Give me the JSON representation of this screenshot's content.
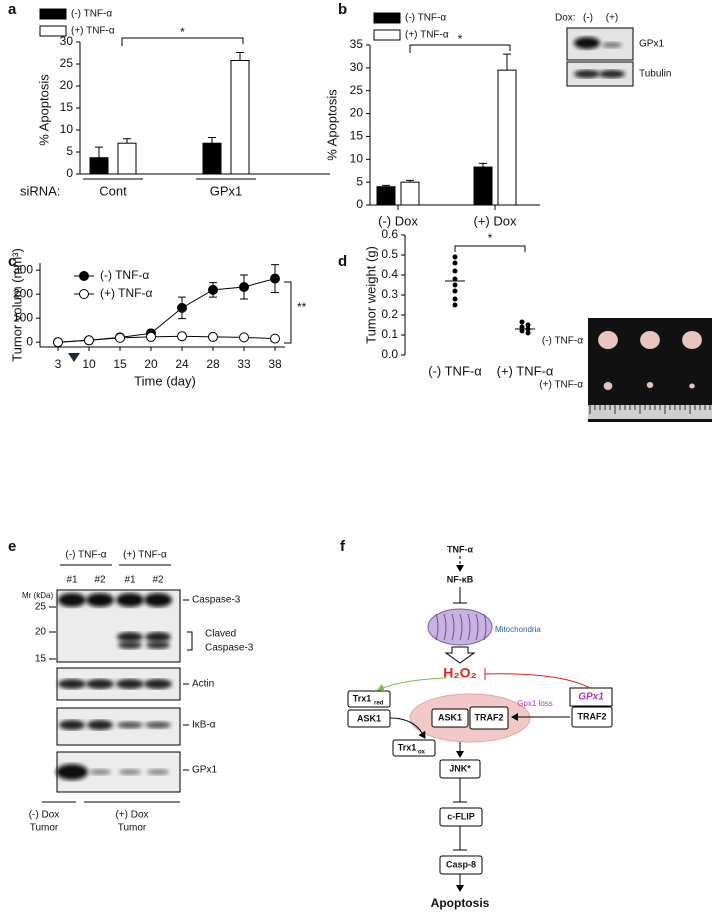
{
  "chart_data": [
    {
      "label": "a",
      "type": "bar",
      "y_label": "% Apoptosis",
      "x_label": "siRNA:",
      "categories": [
        "Cont",
        "GPx1"
      ],
      "series": [
        {
          "name": "(-) TNF-α",
          "color": "#000000",
          "values": [
            3.7,
            7
          ],
          "errors": [
            2.4,
            1.3
          ]
        },
        {
          "name": "(+) TNF-α",
          "color": "#ffffff",
          "values": [
            7,
            25.8
          ],
          "errors": [
            1,
            1.8
          ]
        }
      ],
      "ylim": [
        0,
        30
      ],
      "yticks": [
        0,
        5,
        10,
        15,
        20,
        25,
        30
      ],
      "annotations": [
        "*"
      ]
    },
    {
      "label": "b",
      "type": "bar",
      "y_label": "% Apoptosis",
      "categories": [
        "(-) Dox",
        "(+) Dox"
      ],
      "series": [
        {
          "name": "(-) TNF-α",
          "color": "#000000",
          "values": [
            4,
            8.3
          ],
          "errors": [
            0.3,
            0.8
          ]
        },
        {
          "name": "(+) TNF-α",
          "color": "#ffffff",
          "values": [
            5,
            29.5
          ],
          "errors": [
            0.4,
            3.5
          ]
        }
      ],
      "ylim": [
        0,
        35
      ],
      "yticks": [
        0,
        5,
        10,
        15,
        20,
        25,
        30,
        35
      ],
      "annotations": [
        "*"
      ],
      "inset": {
        "header": "Dox:",
        "lanes": [
          "(-)",
          "(+)"
        ],
        "bands": [
          "GPx1",
          "Tubulin"
        ]
      }
    },
    {
      "label": "c",
      "type": "line",
      "y_label": "Tumor volum (mm³)",
      "x_label": "Time (day)",
      "categories": [
        "3",
        "10",
        "15",
        "20",
        "24",
        "28",
        "33",
        "38"
      ],
      "series": [
        {
          "name": "(-) TNF-α",
          "color": "#000000",
          "values": [
            0,
            8,
            20,
            37,
            143,
            218,
            230,
            265
          ],
          "errors": [
            0,
            3,
            5,
            5,
            45,
            30,
            50,
            58
          ]
        },
        {
          "name": "(+) TNF-α",
          "color": "#ffffff",
          "values": [
            0,
            8,
            18,
            22,
            25,
            22,
            20,
            15
          ],
          "errors": [
            0,
            2,
            3,
            3,
            4,
            3,
            3,
            3
          ]
        }
      ],
      "ylim": [
        -20,
        330
      ],
      "yticks": [
        0,
        100,
        200,
        300
      ],
      "annotations": [
        "**"
      ]
    },
    {
      "label": "d",
      "type": "dot",
      "y_label": "Tumor weight (g)",
      "categories": [
        "(-) TNF-α",
        "(+) TNF-α"
      ],
      "values": [
        [
          0.49,
          0.46,
          0.42,
          0.38,
          0.35,
          0.32,
          0.28,
          0.25
        ],
        [
          0.165,
          0.15,
          0.14,
          0.13,
          0.12,
          0.11
        ]
      ],
      "means": [
        0.37,
        0.13
      ],
      "ylim": [
        0,
        0.6
      ],
      "yticks": [
        {
          "value": 0,
          "label": "0.0"
        },
        0.1,
        0.2,
        0.3,
        0.4,
        0.5,
        0.6
      ],
      "annotations": [
        "*"
      ],
      "photo_labels": [
        "(-) TNF-α",
        "(+) TNF-α"
      ]
    }
  ],
  "blot": {
    "label": "e",
    "groups": [
      "(-) TNF-α",
      "(+) TNF-α"
    ],
    "lanes": [
      "#1",
      "#2",
      "#1",
      "#2"
    ],
    "marker_title": "Mr (kDa)",
    "markers": [
      25,
      20,
      15
    ],
    "bands": [
      "Caspase-3",
      "Claved",
      "Caspase-3",
      "Actin",
      "IκB-α",
      "GPx1"
    ],
    "footer": [
      [
        "(-) Dox",
        "Tumor"
      ],
      [
        "(+) Dox",
        "Tumor"
      ]
    ]
  },
  "diagram": {
    "label": "f",
    "nodes": [
      "TNF-α",
      "NF-κB",
      "Mitochondria",
      "H₂O₂",
      "Trx1",
      "ASK1",
      "Trx1",
      "ASK1",
      "TRAF2",
      "GPx1",
      "TRAF2",
      "Gpx1 loss",
      "JNK*",
      "c-FLIP",
      "Casp-8",
      "Apoptosis"
    ],
    "subs": [
      "red",
      "ox"
    ]
  }
}
